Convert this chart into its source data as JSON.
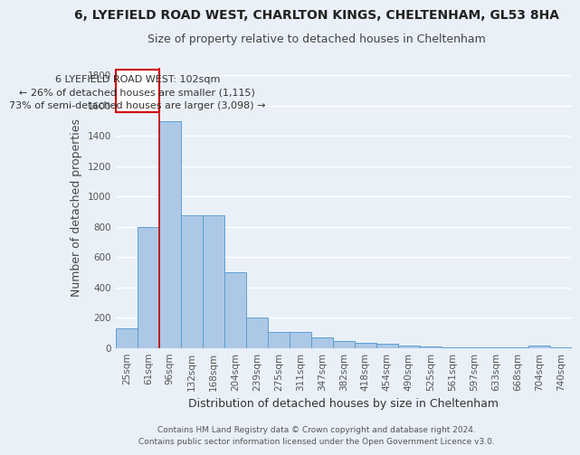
{
  "title1": "6, LYEFIELD ROAD WEST, CHARLTON KINGS, CHELTENHAM, GL53 8HA",
  "title2": "Size of property relative to detached houses in Cheltenham",
  "xlabel": "Distribution of detached houses by size in Cheltenham",
  "ylabel": "Number of detached properties",
  "categories": [
    "25sqm",
    "61sqm",
    "96sqm",
    "132sqm",
    "168sqm",
    "204sqm",
    "239sqm",
    "275sqm",
    "311sqm",
    "347sqm",
    "382sqm",
    "418sqm",
    "454sqm",
    "490sqm",
    "525sqm",
    "561sqm",
    "597sqm",
    "633sqm",
    "668sqm",
    "704sqm",
    "740sqm"
  ],
  "values": [
    130,
    800,
    1500,
    880,
    880,
    500,
    205,
    110,
    110,
    70,
    50,
    35,
    30,
    20,
    10,
    5,
    5,
    5,
    5,
    20,
    5
  ],
  "bar_color": "#adc8e6",
  "bar_edge_color": "#5a9fd4",
  "vline_x_index": 2,
  "vline_color": "#cc0000",
  "annotation_text1": "6 LYEFIELD ROAD WEST: 102sqm",
  "annotation_text2": "← 26% of detached houses are smaller (1,115)",
  "annotation_text3": "73% of semi-detached houses are larger (3,098) →",
  "annotation_box_color": "#ffffff",
  "annotation_box_edge_color": "#cc0000",
  "ylim": [
    0,
    1850
  ],
  "yticks": [
    0,
    200,
    400,
    600,
    800,
    1000,
    1200,
    1400,
    1600,
    1800
  ],
  "background_color": "#eaf0f8",
  "grid_color": "#ffffff",
  "footnote1": "Contains HM Land Registry data © Crown copyright and database right 2024.",
  "footnote2": "Contains public sector information licensed under the Open Government Licence v3.0.",
  "title1_fontsize": 10,
  "title2_fontsize": 9,
  "ylabel_fontsize": 9,
  "xlabel_fontsize": 9,
  "tick_fontsize": 7.5,
  "annotation_fontsize": 8,
  "footnote_fontsize": 6.5
}
